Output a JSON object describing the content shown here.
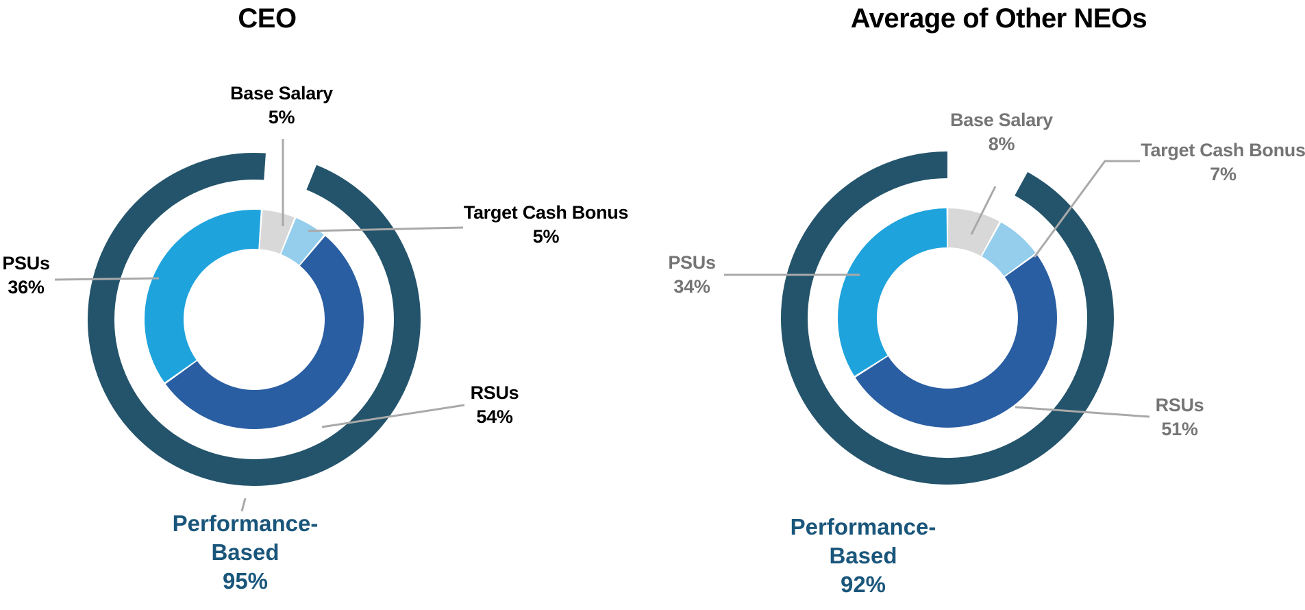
{
  "chart_data": [
    {
      "type": "donut",
      "title": "CEO",
      "label_style": "black",
      "segments": [
        {
          "label": "Base Salary",
          "value": 5,
          "pct_label": "5%",
          "color_role": "base_salary"
        },
        {
          "label": "Target Cash Bonus",
          "value": 5,
          "pct_label": "5%",
          "color_role": "target_cash_bonus"
        },
        {
          "label": "RSUs",
          "value": 54,
          "pct_label": "54%",
          "color_role": "rsus"
        },
        {
          "label": "PSUs",
          "value": 36,
          "pct_label": "36%",
          "color_role": "psus"
        }
      ],
      "outer_ring": {
        "label_line1": "Performance-",
        "label_line2": "Based",
        "value": 95,
        "pct_label": "95%",
        "color_role": "outer_ring"
      }
    },
    {
      "type": "donut",
      "title": "Average of Other NEOs",
      "label_style": "gray",
      "segments": [
        {
          "label": "Base Salary",
          "value": 8,
          "pct_label": "8%",
          "color_role": "base_salary"
        },
        {
          "label": "Target Cash Bonus",
          "value": 7,
          "pct_label": "7%",
          "color_role": "target_cash_bonus"
        },
        {
          "label": "RSUs",
          "value": 51,
          "pct_label": "51%",
          "color_role": "rsus"
        },
        {
          "label": "PSUs",
          "value": 34,
          "pct_label": "34%",
          "color_role": "psus"
        }
      ],
      "outer_ring": {
        "label_line1": "Performance-",
        "label_line2": "Based",
        "value": 92,
        "pct_label": "92%",
        "color_role": "outer_ring"
      }
    }
  ],
  "colors": {
    "outer_ring": "#24546B",
    "psus": "#1FA3DC",
    "rsus": "#2A5EA2",
    "target_cash_bonus": "#94CEEC",
    "base_salary": "#D8D8D8",
    "leader_line": "#A9A9A9",
    "performance_text": "#1A567B",
    "left_labels": "#000000",
    "right_labels": "#757575",
    "titles": "#000000"
  }
}
